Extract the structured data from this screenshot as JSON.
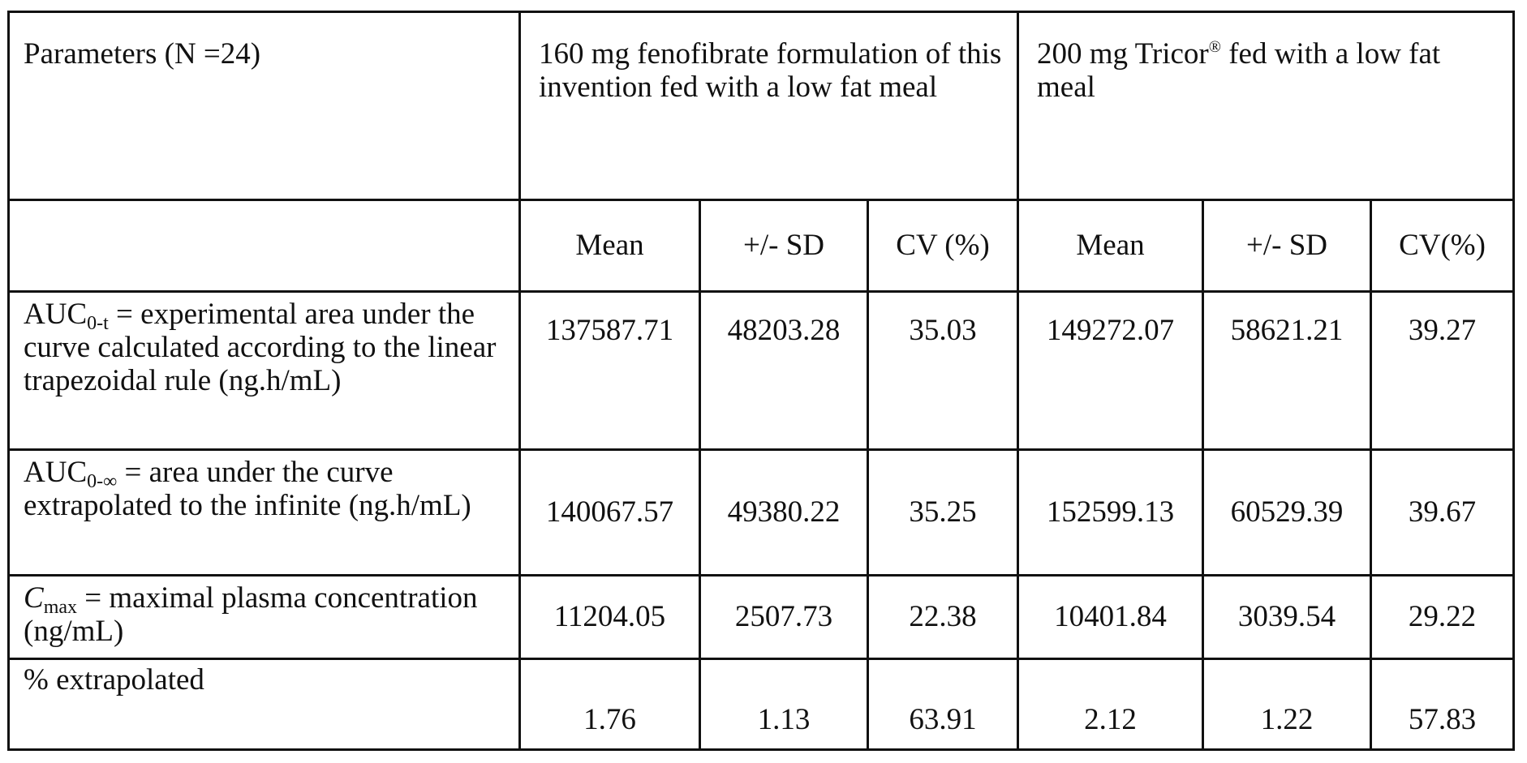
{
  "table": {
    "corner_label": "Parameters (N =24)",
    "groups": [
      {
        "label": "160 mg fenofibrate formulation of this invention fed with a low fat meal"
      },
      {
        "label_before": "200 mg Tricor",
        "label_sup": "®",
        "label_after": " fed with a low fat meal"
      }
    ],
    "subheaders": [
      "Mean",
      "+/- SD",
      "CV (%)",
      "Mean",
      "+/- SD",
      "CV(%)"
    ],
    "rows": [
      {
        "label_sym": "AUC",
        "label_sub": "0-t",
        "label_text": "  = experimental area under the curve calculated according to the linear trapezoidal rule (ng.h/mL)",
        "values": [
          "137587.71",
          "48203.28",
          "35.03",
          "149272.07",
          "58621.21",
          "39.27"
        ]
      },
      {
        "label_sym": "AUC",
        "label_sub": "0-∞",
        "label_text": " = area under the curve extrapolated to the infinite (ng.h/mL)",
        "values": [
          "140067.57",
          "49380.22",
          "35.25",
          "152599.13",
          "60529.39",
          "39.67"
        ]
      },
      {
        "label_sym": "C",
        "label_sub": "max",
        "label_text": " = maximal plasma concentration (ng/mL)",
        "values": [
          "11204.05",
          "2507.73",
          "22.38",
          "10401.84",
          "3039.54",
          "29.22"
        ]
      },
      {
        "label_text": "% extrapolated",
        "values": [
          "1.76",
          "1.13",
          "63.91",
          "2.12",
          "1.22",
          "57.83"
        ]
      }
    ]
  }
}
